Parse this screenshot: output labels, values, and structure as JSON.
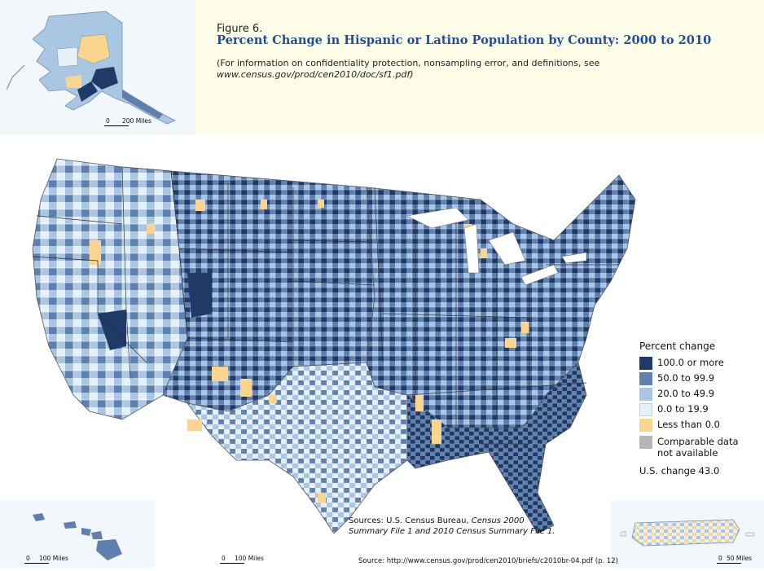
{
  "figure": {
    "label": "Figure 6.",
    "title": "Percent Change in Hispanic or Latino Population by County: 2000 to 2010",
    "note_line1": "(For information on confidentiality protection, nonsampling error, and definitions, see",
    "note_line2": "www.census.gov/prod/cen2010/doc/sf1.pdf)"
  },
  "legend": {
    "title": "Percent change",
    "classes": [
      {
        "label": "100.0 or more",
        "color": "#1f3a66"
      },
      {
        "label": "50.0 to 99.9",
        "color": "#5f7fae"
      },
      {
        "label": "20.0 to 49.9",
        "color": "#a9c7e2"
      },
      {
        "label": "0.0 to 19.9",
        "color": "#e6f0f8"
      },
      {
        "label": "Less than 0.0",
        "color": "#fbd48f"
      }
    ],
    "na_label_line1": "Comparable data",
    "na_label_line2": "not available",
    "na_color": "#b5b5b5"
  },
  "us_change": "U.S. change 43.0",
  "sources": {
    "prefix": "Sources: U.S. Census Bureau, ",
    "census": "Census 2000",
    "line2": "Summary File 1 and 2010 Census Summary File 1."
  },
  "source_url": "Source: http://www.census.gov/prod/cen2010/briefs/c2010br-04.pdf (p. 12)",
  "scale_bars": {
    "alaska": {
      "zero": "0",
      "label": "200 Miles"
    },
    "hawaii": {
      "zero": "0",
      "label": "100 Miles"
    },
    "conus": {
      "zero": "0",
      "label": "100 Miles"
    },
    "puerto_rico": {
      "zero": "0",
      "label": "50 Miles"
    }
  },
  "colors": {
    "dark": "#1f3a66",
    "medium": "#5f7fae",
    "light": "#a9c7e2",
    "pale": "#e6f0f8",
    "negative": "#fbd48f",
    "header_bg": "#fdfde8",
    "title_color": "#1f4f9c"
  }
}
